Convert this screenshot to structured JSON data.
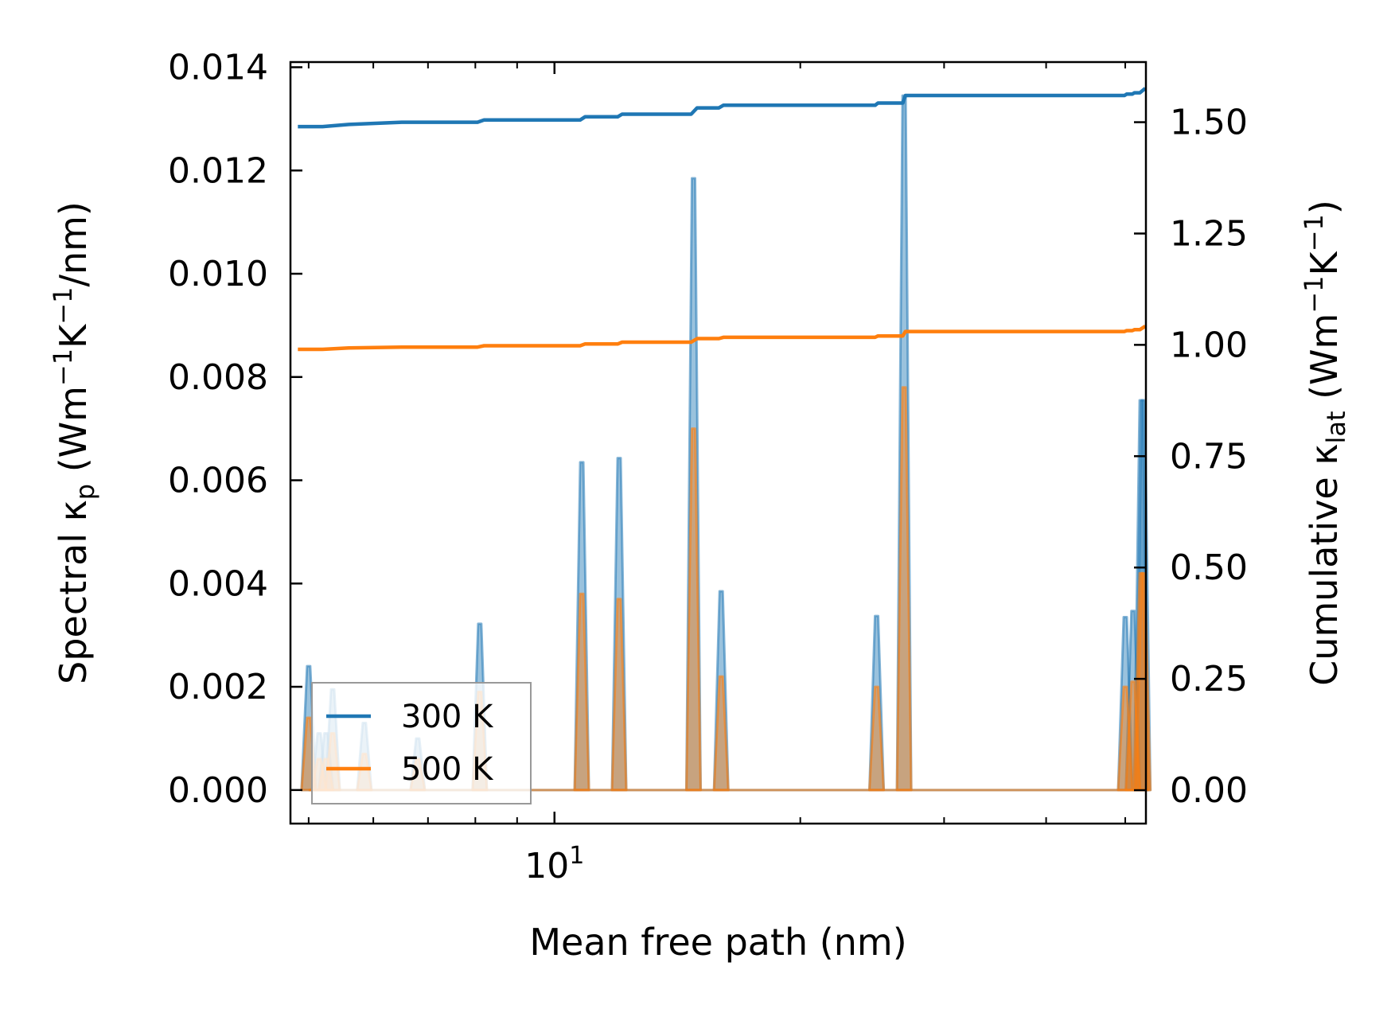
{
  "chart_data": {
    "type": "line",
    "xscale": "log",
    "xlim": [
      4.75,
      53
    ],
    "xlabel": "Mean free path (nm)",
    "x_major_tick_labels": [
      {
        "value": 10,
        "base": "10",
        "exp": "1"
      }
    ],
    "x_minor_ticks": [
      5,
      6,
      7,
      8,
      9,
      20,
      30,
      40,
      50
    ],
    "left_axis": {
      "label_prefix": "Spectral κ",
      "label_sub": "p",
      "label_units": [
        {
          "t": " (Wm",
          "sup": false
        },
        {
          "t": "−1",
          "sup": true
        },
        {
          "t": "K",
          "sup": false
        },
        {
          "t": "−1",
          "sup": true
        },
        {
          "t": "/nm)",
          "sup": false
        }
      ],
      "ylim": [
        -0.00065,
        0.0141
      ],
      "ticks": [
        0.0,
        0.002,
        0.004,
        0.006,
        0.008,
        0.01,
        0.012,
        0.014
      ],
      "tick_labels": [
        "0.000",
        "0.002",
        "0.004",
        "0.006",
        "0.008",
        "0.010",
        "0.012",
        "0.014"
      ]
    },
    "right_axis": {
      "label_prefix": "Cumulative κ",
      "label_sub": "lat",
      "label_units": [
        {
          "t": " (Wm",
          "sup": false
        },
        {
          "t": "−1",
          "sup": true
        },
        {
          "t": "K",
          "sup": false
        },
        {
          "t": "−1",
          "sup": true
        },
        {
          "t": ")",
          "sup": false
        }
      ],
      "ylim": [
        -0.075,
        1.635
      ],
      "ticks": [
        0.0,
        0.25,
        0.5,
        0.75,
        1.0,
        1.25,
        1.5
      ],
      "tick_labels": [
        "0.00",
        "0.25",
        "0.50",
        "0.75",
        "1.00",
        "1.25",
        "1.50"
      ]
    },
    "legend": {
      "position": "lower-left",
      "entries": [
        "300 K",
        "500 K"
      ]
    },
    "spectral_peaks_300K": [
      [
        5.0,
        0.0024
      ],
      [
        5.15,
        0.0011
      ],
      [
        5.25,
        0.0011
      ],
      [
        5.35,
        0.00195
      ],
      [
        5.85,
        0.0013
      ],
      [
        6.8,
        0.001
      ],
      [
        8.1,
        0.00322
      ],
      [
        10.8,
        0.00635
      ],
      [
        12.0,
        0.00643
      ],
      [
        14.8,
        0.01185
      ],
      [
        16.0,
        0.00385
      ],
      [
        24.8,
        0.00337
      ],
      [
        26.8,
        0.01345
      ],
      [
        50.0,
        0.00335
      ],
      [
        51.1,
        0.00347
      ],
      [
        52.3,
        0.00755
      ],
      [
        52.6,
        0.00755
      ]
    ],
    "spectral_peaks_500K": [
      [
        5.0,
        0.0014
      ],
      [
        5.15,
        0.0006
      ],
      [
        5.25,
        0.0006
      ],
      [
        5.35,
        0.0011
      ],
      [
        5.85,
        0.0007
      ],
      [
        6.8,
        0.0006
      ],
      [
        8.1,
        0.0019
      ],
      [
        10.8,
        0.0038
      ],
      [
        12.0,
        0.0037
      ],
      [
        14.8,
        0.007
      ],
      [
        16.0,
        0.0022
      ],
      [
        24.8,
        0.002
      ],
      [
        26.8,
        0.0078
      ],
      [
        50.0,
        0.002
      ],
      [
        51.1,
        0.0021
      ],
      [
        52.3,
        0.0042
      ],
      [
        52.6,
        0.0042
      ]
    ],
    "series": [
      {
        "name": "300 K",
        "color": "#1f77b4",
        "cumulative": [
          [
            4.85,
            1.49
          ],
          [
            5.2,
            1.49
          ],
          [
            5.6,
            1.495
          ],
          [
            6.5,
            1.5
          ],
          [
            8.05,
            1.5
          ],
          [
            8.2,
            1.505
          ],
          [
            10.75,
            1.505
          ],
          [
            10.9,
            1.512
          ],
          [
            11.95,
            1.512
          ],
          [
            12.1,
            1.518
          ],
          [
            14.7,
            1.518
          ],
          [
            14.95,
            1.532
          ],
          [
            15.9,
            1.532
          ],
          [
            16.1,
            1.538
          ],
          [
            24.7,
            1.538
          ],
          [
            24.9,
            1.543
          ],
          [
            26.7,
            1.543
          ],
          [
            26.9,
            1.56
          ],
          [
            49.9,
            1.56
          ],
          [
            50.2,
            1.563
          ],
          [
            51.0,
            1.563
          ],
          [
            51.3,
            1.566
          ],
          [
            52.1,
            1.566
          ],
          [
            52.9,
            1.576
          ]
        ]
      },
      {
        "name": "500 K",
        "color": "#ff7f0e",
        "cumulative": [
          [
            4.85,
            0.99
          ],
          [
            5.2,
            0.99
          ],
          [
            5.6,
            0.993
          ],
          [
            6.5,
            0.995
          ],
          [
            8.05,
            0.995
          ],
          [
            8.2,
            0.998
          ],
          [
            10.75,
            0.998
          ],
          [
            10.9,
            1.002
          ],
          [
            11.95,
            1.002
          ],
          [
            12.1,
            1.006
          ],
          [
            14.7,
            1.006
          ],
          [
            14.95,
            1.014
          ],
          [
            15.9,
            1.014
          ],
          [
            16.1,
            1.017
          ],
          [
            24.7,
            1.017
          ],
          [
            24.9,
            1.02
          ],
          [
            26.7,
            1.02
          ],
          [
            26.9,
            1.03
          ],
          [
            49.9,
            1.03
          ],
          [
            50.2,
            1.032
          ],
          [
            51.0,
            1.032
          ],
          [
            51.3,
            1.034
          ],
          [
            52.1,
            1.034
          ],
          [
            52.9,
            1.042
          ]
        ]
      }
    ]
  }
}
